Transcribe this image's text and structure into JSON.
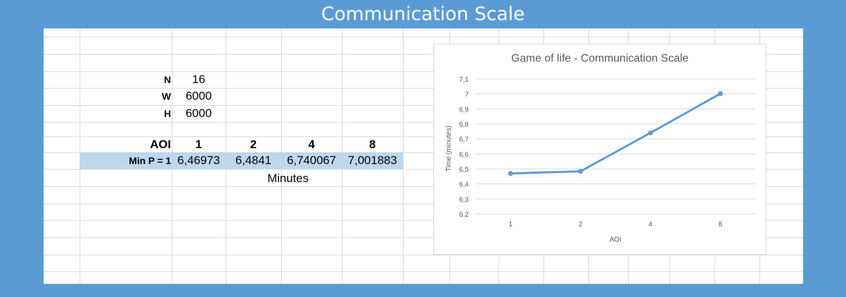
{
  "banner": {
    "title": "Communication Scale"
  },
  "sheet": {
    "params": [
      {
        "label": "N",
        "value": "16"
      },
      {
        "label": "W",
        "value": "6000"
      },
      {
        "label": "H",
        "value": "6000"
      }
    ],
    "table": {
      "header_label": "AOI",
      "columns": [
        "1",
        "2",
        "4",
        "8"
      ],
      "row_label": "Min P = 1",
      "values": [
        "6,46973",
        "6,4841",
        "6,740067",
        "7,001883"
      ],
      "unit": "Minutes"
    },
    "highlight_color": "#bdd7ee"
  },
  "chart_data": {
    "type": "line",
    "title": "Game of life - Communication Scale",
    "xlabel": "AOI",
    "ylabel": "Time (minutes)",
    "categories": [
      "1",
      "2",
      "4",
      "8"
    ],
    "series": [
      {
        "values": [
          6.46973,
          6.4841,
          6.740067,
          7.001883
        ]
      }
    ],
    "ylim": [
      6.2,
      7.1
    ],
    "yticks": [
      "6,2",
      "6,3",
      "6,4",
      "6,5",
      "6,6",
      "6,7",
      "6,8",
      "6,9",
      "7",
      "7,1"
    ],
    "grid": true,
    "line_color": "#5b9bd5"
  }
}
